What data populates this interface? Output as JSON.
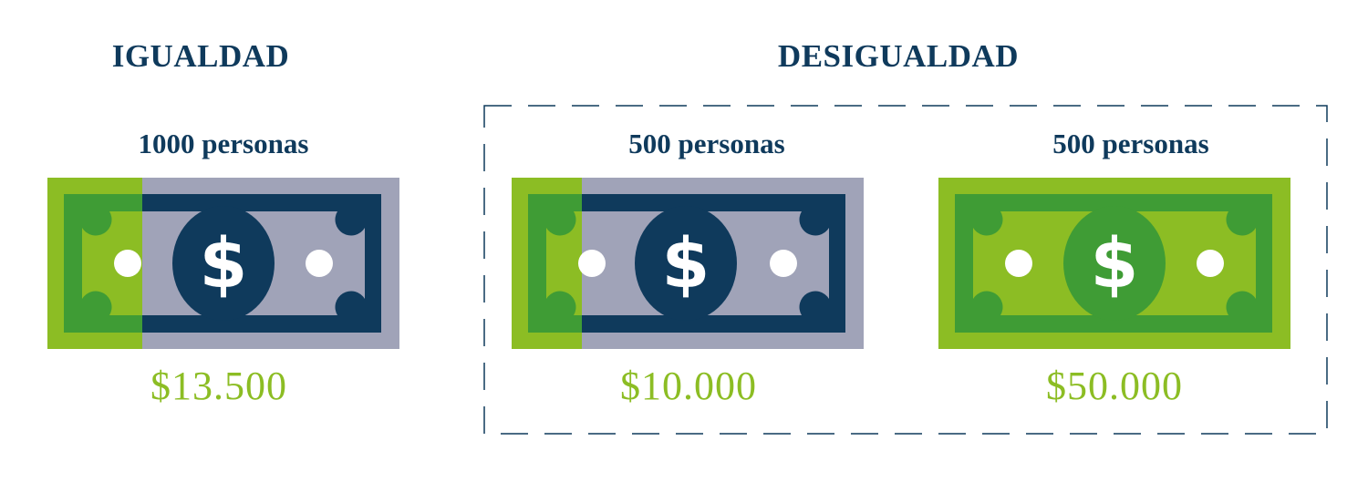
{
  "colors": {
    "navy": "#0f3a5c",
    "lime": "#8cbd24",
    "green": "#3f9c35",
    "gray": "#a0a3b8",
    "white": "#ffffff"
  },
  "equality": {
    "heading": "IGUALDAD",
    "people": "1000 personas",
    "amount": "$13.500",
    "bill_style": "split-green-gray"
  },
  "inequality": {
    "heading": "DESIGUALDAD",
    "groups": [
      {
        "people": "500 personas",
        "amount": "$10.000",
        "bill_style": "split-green-gray"
      },
      {
        "people": "500 personas",
        "amount": "$50.000",
        "bill_style": "full-green"
      }
    ]
  },
  "bill_symbol": "$",
  "icons": [
    "banknote-icon",
    "banknote-icon",
    "banknote-icon"
  ]
}
